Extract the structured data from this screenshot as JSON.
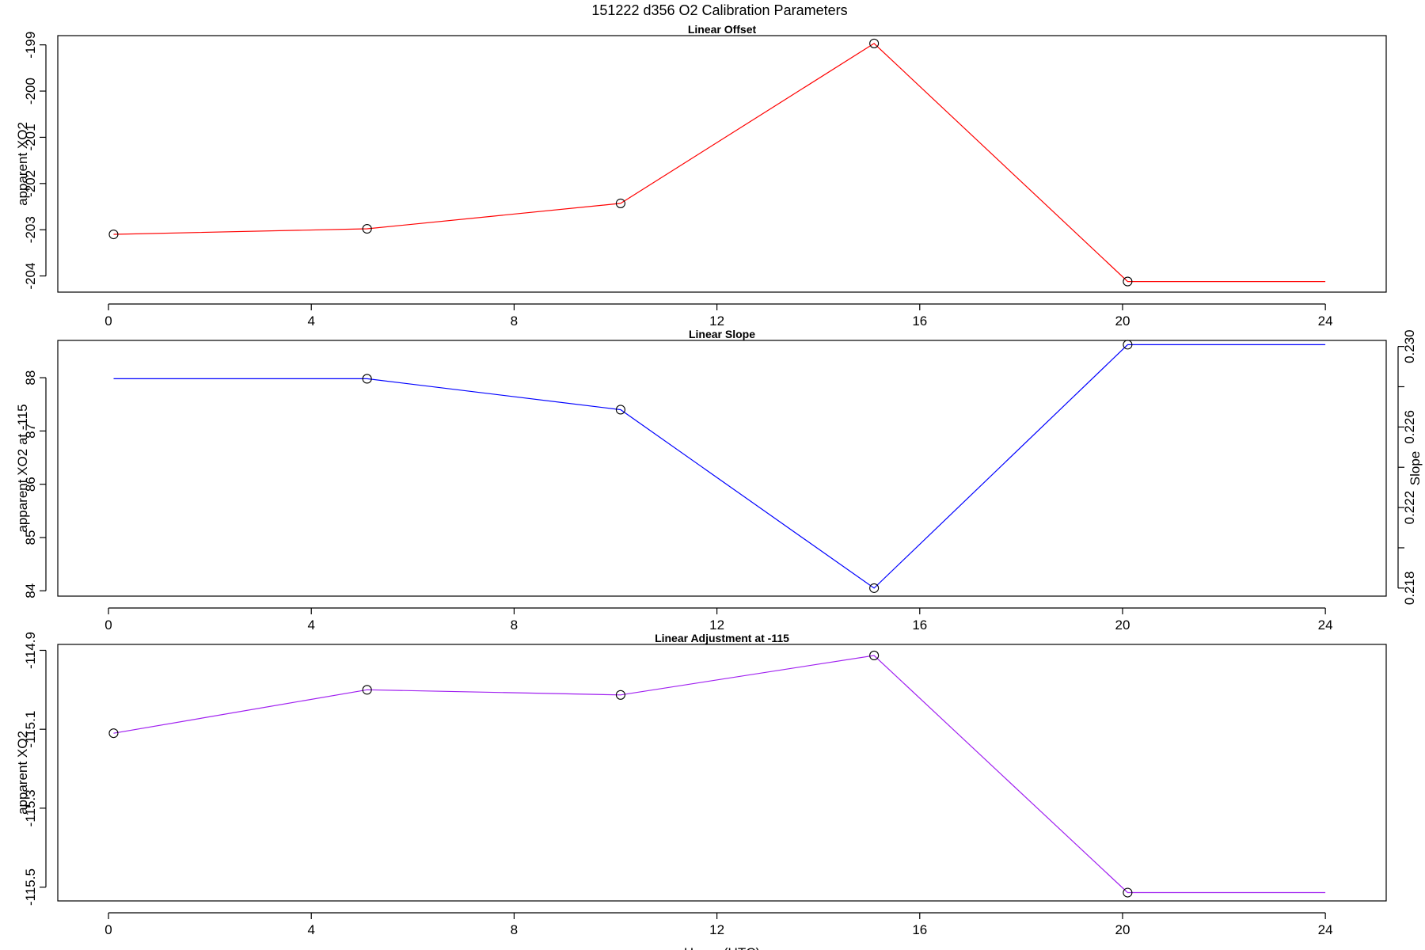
{
  "page_title": "151222   d356   O2 Calibration Parameters",
  "colors": {
    "offset": "#ff0000",
    "slope": "#0000ff",
    "adjustment": "#a020f0",
    "axes": "#000000",
    "markers": "#000000"
  },
  "chart_data": [
    {
      "type": "line",
      "title": "Linear Offset",
      "xlabel": "",
      "ylabel": "apparent XO2",
      "xlim": [
        -1,
        25.2
      ],
      "x_ticks": [
        "0",
        "4",
        "8",
        "12",
        "16",
        "20",
        "24"
      ],
      "ylim": [
        -204.35,
        -198.8
      ],
      "y_ticks": [
        "-204",
        "-203",
        "-202",
        "-201",
        "-200",
        "-199"
      ],
      "series": [
        {
          "color": "#ff0000",
          "x": [
            0.1,
            5.1,
            10.1,
            15.1,
            20.1,
            24
          ],
          "y": [
            -203.1,
            -202.98,
            -202.43,
            -198.97,
            -204.12,
            -204.12
          ],
          "marker_count": 5
        }
      ]
    },
    {
      "type": "line",
      "title": "Linear Slope",
      "xlabel": "",
      "ylabel": "apparent XO2 at -115",
      "y2label": "Slope",
      "xlim": [
        -1,
        25.2
      ],
      "x_ticks": [
        "0",
        "4",
        "8",
        "12",
        "16",
        "20",
        "24"
      ],
      "ylim": [
        83.9,
        88.7
      ],
      "y_ticks": [
        "84",
        "85",
        "86",
        "87",
        "88"
      ],
      "y2lim": [
        0.2176,
        0.2303
      ],
      "y2_ticks": [
        "0.218",
        "",
        "0.222",
        "",
        "0.226",
        "",
        "0.230"
      ],
      "y2_tick_values": [
        0.218,
        0.22,
        0.222,
        0.224,
        0.226,
        0.228,
        0.23
      ],
      "series": [
        {
          "color": "#0000ff",
          "x": [
            0.1,
            5.1,
            10.1,
            15.1,
            20.1,
            24
          ],
          "y": [
            87.98,
            87.98,
            87.4,
            84.05,
            88.62,
            88.62
          ],
          "marker_from": 1
        }
      ]
    },
    {
      "type": "line",
      "title": "Linear Adjustment at -115",
      "xlabel": "Hours (UTC)",
      "ylabel": "apparent XO2",
      "xlim": [
        -1,
        25.2
      ],
      "x_ticks": [
        "0",
        "4",
        "8",
        "12",
        "16",
        "20",
        "24"
      ],
      "ylim": [
        -115.535,
        -114.885
      ],
      "y_ticks": [
        "-115.5",
        "-115.3",
        "-115.1",
        "-114.9"
      ],
      "series": [
        {
          "color": "#a020f0",
          "x": [
            0.1,
            5.1,
            10.1,
            15.1,
            20.1,
            24
          ],
          "y": [
            -115.11,
            -115.0,
            -115.013,
            -114.913,
            -115.514,
            -115.514
          ],
          "marker_count": 5
        }
      ]
    }
  ]
}
